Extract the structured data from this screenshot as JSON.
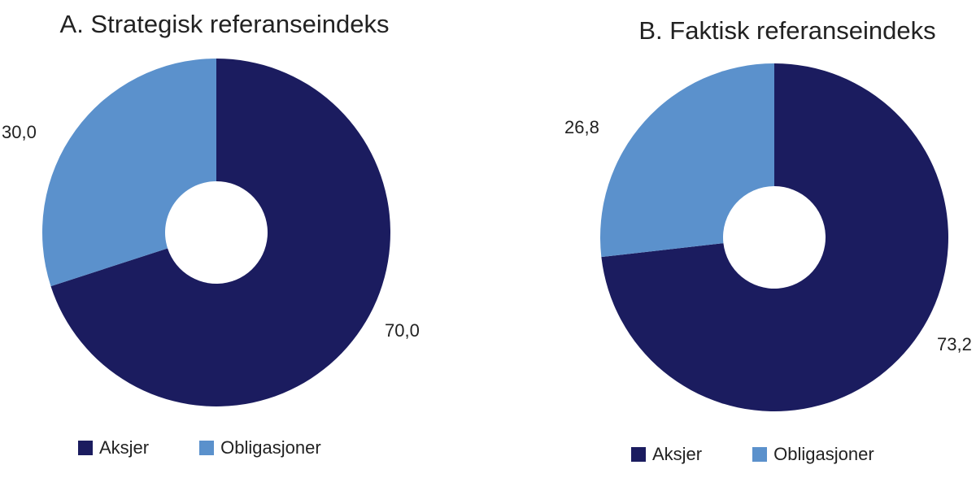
{
  "colors": {
    "aksjer": "#1b1c5f",
    "obligasjoner": "#5b91cc"
  },
  "chart_data": [
    {
      "type": "pie",
      "variant": "donut",
      "title": "A. Strategisk referanseindeks",
      "categories": [
        "Aksjer",
        "Obligasjoner"
      ],
      "values": [
        70.0,
        30.0
      ],
      "data_labels": [
        "70,0",
        "30,0"
      ],
      "legend": {
        "position": "bottom-left",
        "entries": [
          "Aksjer",
          "Obligasjoner"
        ]
      }
    },
    {
      "type": "pie",
      "variant": "donut",
      "title": "B. Faktisk referanseindeks",
      "categories": [
        "Aksjer",
        "Obligasjoner"
      ],
      "values": [
        73.2,
        26.8
      ],
      "data_labels": [
        "73,2",
        "26,8"
      ],
      "legend": {
        "position": "bottom-left",
        "entries": [
          "Aksjer",
          "Obligasjoner"
        ]
      }
    }
  ]
}
